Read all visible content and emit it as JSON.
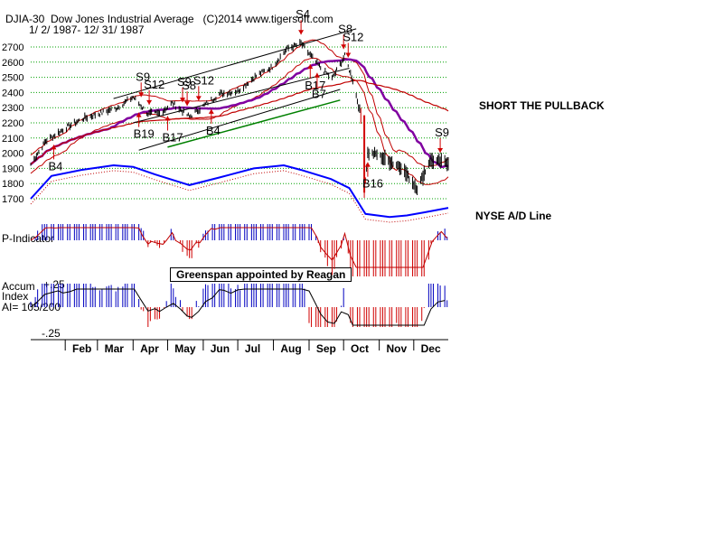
{
  "header": {
    "line1": "DJIA-30  Dow Jones Industrial Average   (C)2014 www.tigersoft.com",
    "line2": "1/ 2/ 1987- 12/ 31/ 1987"
  },
  "notes": {
    "short": "SHORT THE PULLBACK",
    "nyse": "NYSE A/D Line",
    "greenspan": "Greenspan appointed by Reagan"
  },
  "panels": {
    "p_indicator": "P-Indicator",
    "accum_line1": "Accum",
    "accum_line2": "Index",
    "accum_line3": "AI= 105/200",
    "accum_top": "+.25",
    "accum_bottom": "-.25"
  },
  "colors": {
    "price": "#000000",
    "ad_line": "#0000ff",
    "ma_red": "#c00000",
    "ma_purple": "#8000a0",
    "green_line": "#008000",
    "grid": "#00a000",
    "pos_bar": "#0000c0",
    "neg_bar": "#d00000",
    "sell_arrow": "#d00000"
  },
  "chart_data": {
    "type": "line",
    "title": "DJIA-30  Dow Jones Industrial Average",
    "xlabel": "",
    "ylabel": "",
    "ylim": [
      1600,
      2800
    ],
    "y_ticks": [
      1700,
      1800,
      1900,
      2000,
      2100,
      2200,
      2300,
      2400,
      2500,
      2600,
      2700
    ],
    "months": [
      "Feb",
      "Mar",
      "Apr",
      "May",
      "Jun",
      "Jul",
      "Aug",
      "Sep",
      "Oct",
      "Nov",
      "Dec"
    ],
    "djia": [
      [
        "1987-01-02",
        1927
      ],
      [
        "1987-01-15",
        2080
      ],
      [
        "1987-02-02",
        2170
      ],
      [
        "1987-02-17",
        2230
      ],
      [
        "1987-03-02",
        2260
      ],
      [
        "1987-03-18",
        2300
      ],
      [
        "1987-04-01",
        2370
      ],
      [
        "1987-04-14",
        2260
      ],
      [
        "1987-04-24",
        2260
      ],
      [
        "1987-05-05",
        2330
      ],
      [
        "1987-05-20",
        2240
      ],
      [
        "1987-06-01",
        2310
      ],
      [
        "1987-06-15",
        2390
      ],
      [
        "1987-07-01",
        2410
      ],
      [
        "1987-07-17",
        2510
      ],
      [
        "1987-07-31",
        2570
      ],
      [
        "1987-08-13",
        2690
      ],
      [
        "1987-08-25",
        2722
      ],
      [
        "1987-09-10",
        2570
      ],
      [
        "1987-09-21",
        2490
      ],
      [
        "1987-10-02",
        2640
      ],
      [
        "1987-10-09",
        2480
      ],
      [
        "1987-10-16",
        2246
      ],
      [
        "1987-10-19",
        1738
      ],
      [
        "1987-10-22",
        2000
      ],
      [
        "1987-10-30",
        1993
      ],
      [
        "1987-11-06",
        1960
      ],
      [
        "1987-11-20",
        1910
      ],
      [
        "1987-12-04",
        1766
      ],
      [
        "1987-12-15",
        1950
      ],
      [
        "1987-12-31",
        1939
      ]
    ],
    "ad_line": [
      [
        "1987-01-02",
        1700
      ],
      [
        "1987-01-20",
        1850
      ],
      [
        "1987-02-15",
        1890
      ],
      [
        "1987-03-15",
        1920
      ],
      [
        "1987-04-01",
        1910
      ],
      [
        "1987-04-20",
        1860
      ],
      [
        "1987-05-20",
        1790
      ],
      [
        "1987-06-15",
        1840
      ],
      [
        "1987-07-15",
        1900
      ],
      [
        "1987-08-10",
        1920
      ],
      [
        "1987-08-25",
        1890
      ],
      [
        "1987-09-20",
        1830
      ],
      [
        "1987-10-06",
        1770
      ],
      [
        "1987-10-20",
        1600
      ],
      [
        "1987-11-10",
        1580
      ],
      [
        "1987-11-25",
        1590
      ],
      [
        "1987-12-10",
        1610
      ],
      [
        "1987-12-31",
        1640
      ]
    ],
    "signals": [
      {
        "label": "S4",
        "date": "1987-08-25",
        "type": "sell"
      },
      {
        "label": "S8",
        "date": "1987-10-01",
        "type": "sell"
      },
      {
        "label": "S12",
        "date": "1987-10-05",
        "type": "sell"
      },
      {
        "label": "S9",
        "date": "1987-04-08",
        "type": "sell"
      },
      {
        "label": "S12",
        "date": "1987-04-15",
        "type": "sell"
      },
      {
        "label": "S8",
        "date": "1987-05-18",
        "type": "sell"
      },
      {
        "label": "S9",
        "date": "1987-05-14",
        "type": "sell"
      },
      {
        "label": "S12",
        "date": "1987-05-28",
        "type": "sell"
      },
      {
        "label": "B4",
        "date": "1987-01-22",
        "type": "buy"
      },
      {
        "label": "B19",
        "date": "1987-04-06",
        "type": "buy"
      },
      {
        "label": "B17",
        "date": "1987-05-01",
        "type": "buy"
      },
      {
        "label": "B4",
        "date": "1987-06-08",
        "type": "buy"
      },
      {
        "label": "B17",
        "date": "1987-09-02",
        "type": "buy"
      },
      {
        "label": "B7",
        "date": "1987-09-08",
        "type": "buy"
      },
      {
        "label": "B16",
        "date": "1987-10-22",
        "type": "buy"
      },
      {
        "label": "S9",
        "date": "1987-12-24",
        "type": "sell"
      }
    ]
  }
}
